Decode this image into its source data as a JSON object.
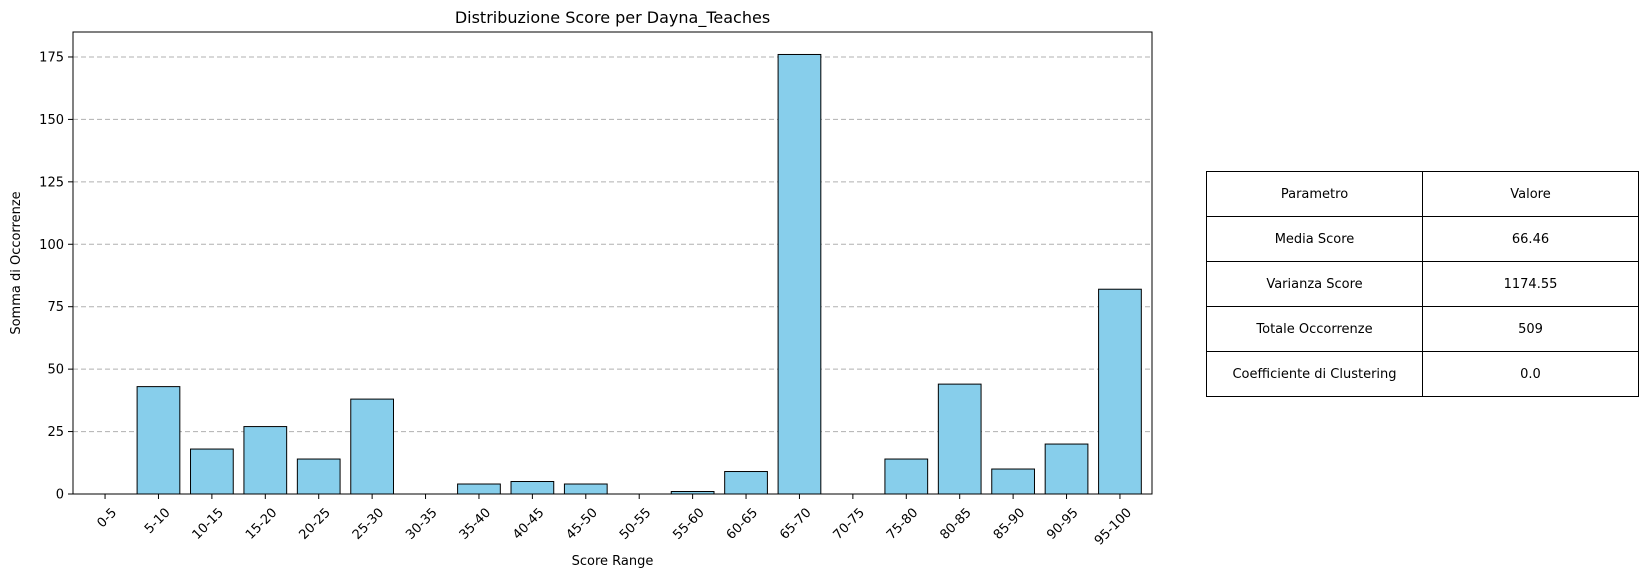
{
  "chart_data": {
    "type": "bar",
    "title": "Distribuzione Score per Dayna_Teaches",
    "xlabel": "Score Range",
    "ylabel": "Somma di Occorrenze",
    "categories": [
      "0-5",
      "5-10",
      "10-15",
      "15-20",
      "20-25",
      "25-30",
      "30-35",
      "35-40",
      "40-45",
      "45-50",
      "50-55",
      "55-60",
      "60-65",
      "65-70",
      "70-75",
      "75-80",
      "80-85",
      "85-90",
      "90-95",
      "95-100"
    ],
    "values": [
      0,
      43,
      18,
      27,
      14,
      38,
      0,
      4,
      5,
      4,
      0,
      1,
      9,
      176,
      0,
      14,
      44,
      10,
      20,
      82
    ],
    "ylim": [
      0,
      185
    ],
    "yticks": [
      0,
      25,
      50,
      75,
      100,
      125,
      150,
      175
    ],
    "grid": "y-dashed",
    "bar_color": "#87ceeb",
    "edge_color": "#000000"
  },
  "stats_table": {
    "header": [
      "Parametro",
      "Valore"
    ],
    "rows": [
      [
        "Media Score",
        "66.46"
      ],
      [
        "Varianza Score",
        "1174.55"
      ],
      [
        "Totale Occorrenze",
        "509"
      ],
      [
        "Coefficiente di Clustering",
        "0.0"
      ]
    ]
  }
}
